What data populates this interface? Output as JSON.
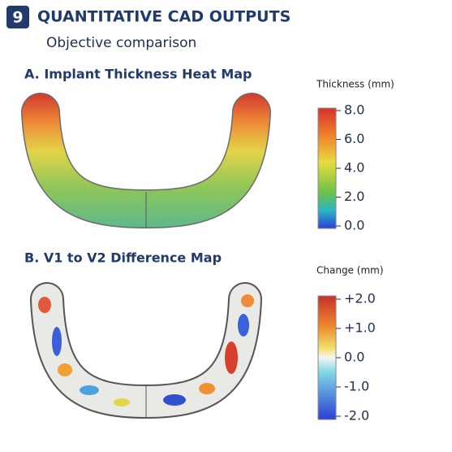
{
  "header": {
    "badge": "9",
    "title": "QUANTITATIVE CAD OUTPUTS",
    "subtitle": "Objective comparison"
  },
  "panels": [
    {
      "title": "A. Implant Thickness Heat Map",
      "colorbar_label": "Thickness (mm)",
      "ticks": [
        "8.0",
        "6.0",
        "4.0",
        "2.0",
        "0.0"
      ]
    },
    {
      "title": "B. V1 to V2 Difference Map",
      "colorbar_label": "Change (mm)",
      "ticks": [
        "+2.0",
        "+1.0",
        "0.0",
        "-1.0",
        "-2.0"
      ]
    }
  ]
}
